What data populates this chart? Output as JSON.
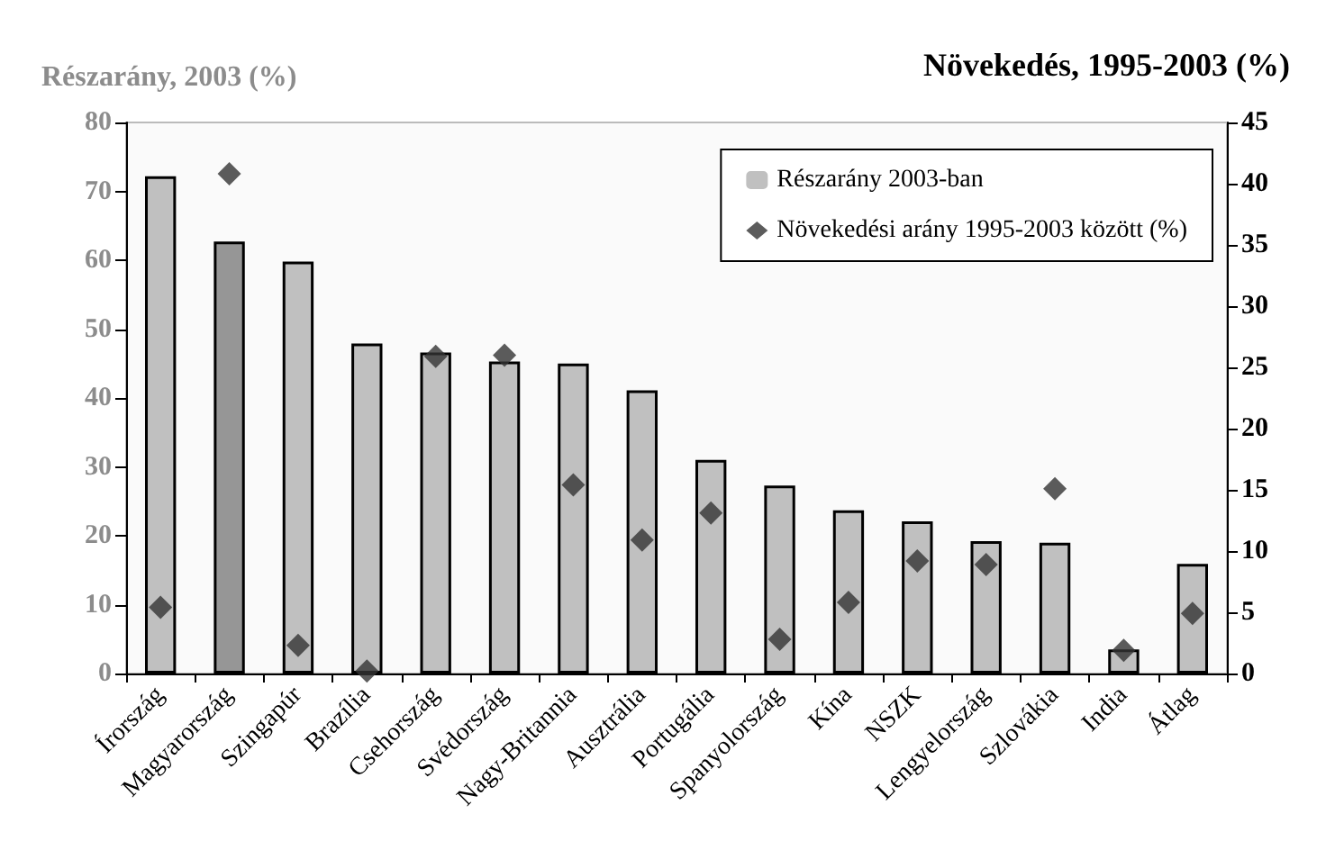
{
  "chart_data": {
    "type": "bar",
    "ylabel": "Részarány, 2003 (%)",
    "y2label": "Növekedés, 1995-2003 (%)",
    "categories": [
      "Írország",
      "Magyarország",
      "Szingapúr",
      "Brazília",
      "Csehország",
      "Svédország",
      "Nagy-Britannia",
      "Ausztrália",
      "Portugália",
      "Spanyolország",
      "Kína",
      "NSZK",
      "Lengyelország",
      "Szlovákia",
      "India",
      "Átlag"
    ],
    "series": [
      {
        "name": "Részarány 2003-ban",
        "color": "#c0c0c0",
        "colors": [
          "#c0c0c0",
          "#969696",
          "#c0c0c0",
          "#c0c0c0",
          "#c0c0c0",
          "#c0c0c0",
          "#c0c0c0",
          "#c0c0c0",
          "#c0c0c0",
          "#c0c0c0",
          "#c0c0c0",
          "#c0c0c0",
          "#c0c0c0",
          "#c0c0c0",
          "#c0c0c0",
          "#c0c0c0"
        ],
        "values": [
          72.2,
          62.7,
          59.8,
          47.9,
          46.6,
          45.3,
          45,
          41.1,
          31,
          27.3,
          23.7,
          22.1,
          19.2,
          19,
          3.5,
          15.9
        ]
      },
      {
        "name": "Növekedési arány 1995-2003 között (%)",
        "type": "scatter",
        "axis": "y2",
        "marker": "diamond",
        "color": "#333333",
        "values": [
          5.4,
          40.8,
          2.3,
          0.2,
          25.9,
          26,
          15.4,
          10.9,
          13.1,
          2.8,
          5.8,
          9.2,
          8.9,
          15.1,
          1.9,
          4.9
        ]
      }
    ],
    "ylim": [
      0,
      80
    ],
    "yticks": [
      0,
      10,
      20,
      30,
      40,
      50,
      60,
      70,
      80
    ],
    "y2lim": [
      0,
      45
    ],
    "y2ticks": [
      0,
      5,
      10,
      15,
      20,
      25,
      30,
      35,
      40,
      45
    ],
    "grid": false,
    "legend": "top right"
  }
}
